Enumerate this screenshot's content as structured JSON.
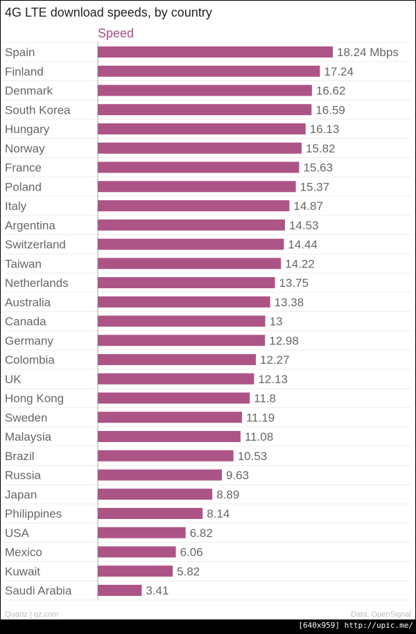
{
  "chart_data": {
    "type": "bar",
    "orientation": "horizontal",
    "title": "4G LTE download speeds, by country",
    "series_name": "Speed",
    "unit_suffix": " Mbps",
    "categories": [
      "Spain",
      "Finland",
      "Denmark",
      "South Korea",
      "Hungary",
      "Norway",
      "France",
      "Poland",
      "Italy",
      "Argentina",
      "Switzerland",
      "Taiwan",
      "Netherlands",
      "Australia",
      "Canada",
      "Germany",
      "Colombia",
      "UK",
      "Hong Kong",
      "Sweden",
      "Malaysia",
      "Brazil",
      "Russia",
      "Japan",
      "Philippines",
      "USA",
      "Mexico",
      "Kuwait",
      "Saudi Arabia"
    ],
    "values": [
      18.24,
      17.24,
      16.62,
      16.59,
      16.13,
      15.82,
      15.63,
      15.37,
      14.87,
      14.53,
      14.44,
      14.22,
      13.75,
      13.38,
      13,
      12.98,
      12.27,
      12.13,
      11.8,
      11.19,
      11.08,
      10.53,
      9.63,
      8.89,
      8.14,
      6.82,
      6.06,
      5.82,
      3.41
    ],
    "value_labels": [
      "18.24 Mbps",
      "17.24",
      "16.62",
      "16.59",
      "16.13",
      "15.82",
      "15.63",
      "15.37",
      "14.87",
      "14.53",
      "14.44",
      "14.22",
      "13.75",
      "13.38",
      "13",
      "12.98",
      "12.27",
      "12.13",
      "11.8",
      "11.19",
      "11.08",
      "10.53",
      "9.63",
      "8.89",
      "8.14",
      "6.82",
      "6.06",
      "5.82",
      "3.41"
    ],
    "xlim": [
      0,
      18.24
    ],
    "color": "#ad5486"
  },
  "footer": {
    "source_left": "Quartz | qz.com",
    "source_right": "Data: OpenSignal"
  },
  "watermark": "[640x959] http://upic.me/"
}
